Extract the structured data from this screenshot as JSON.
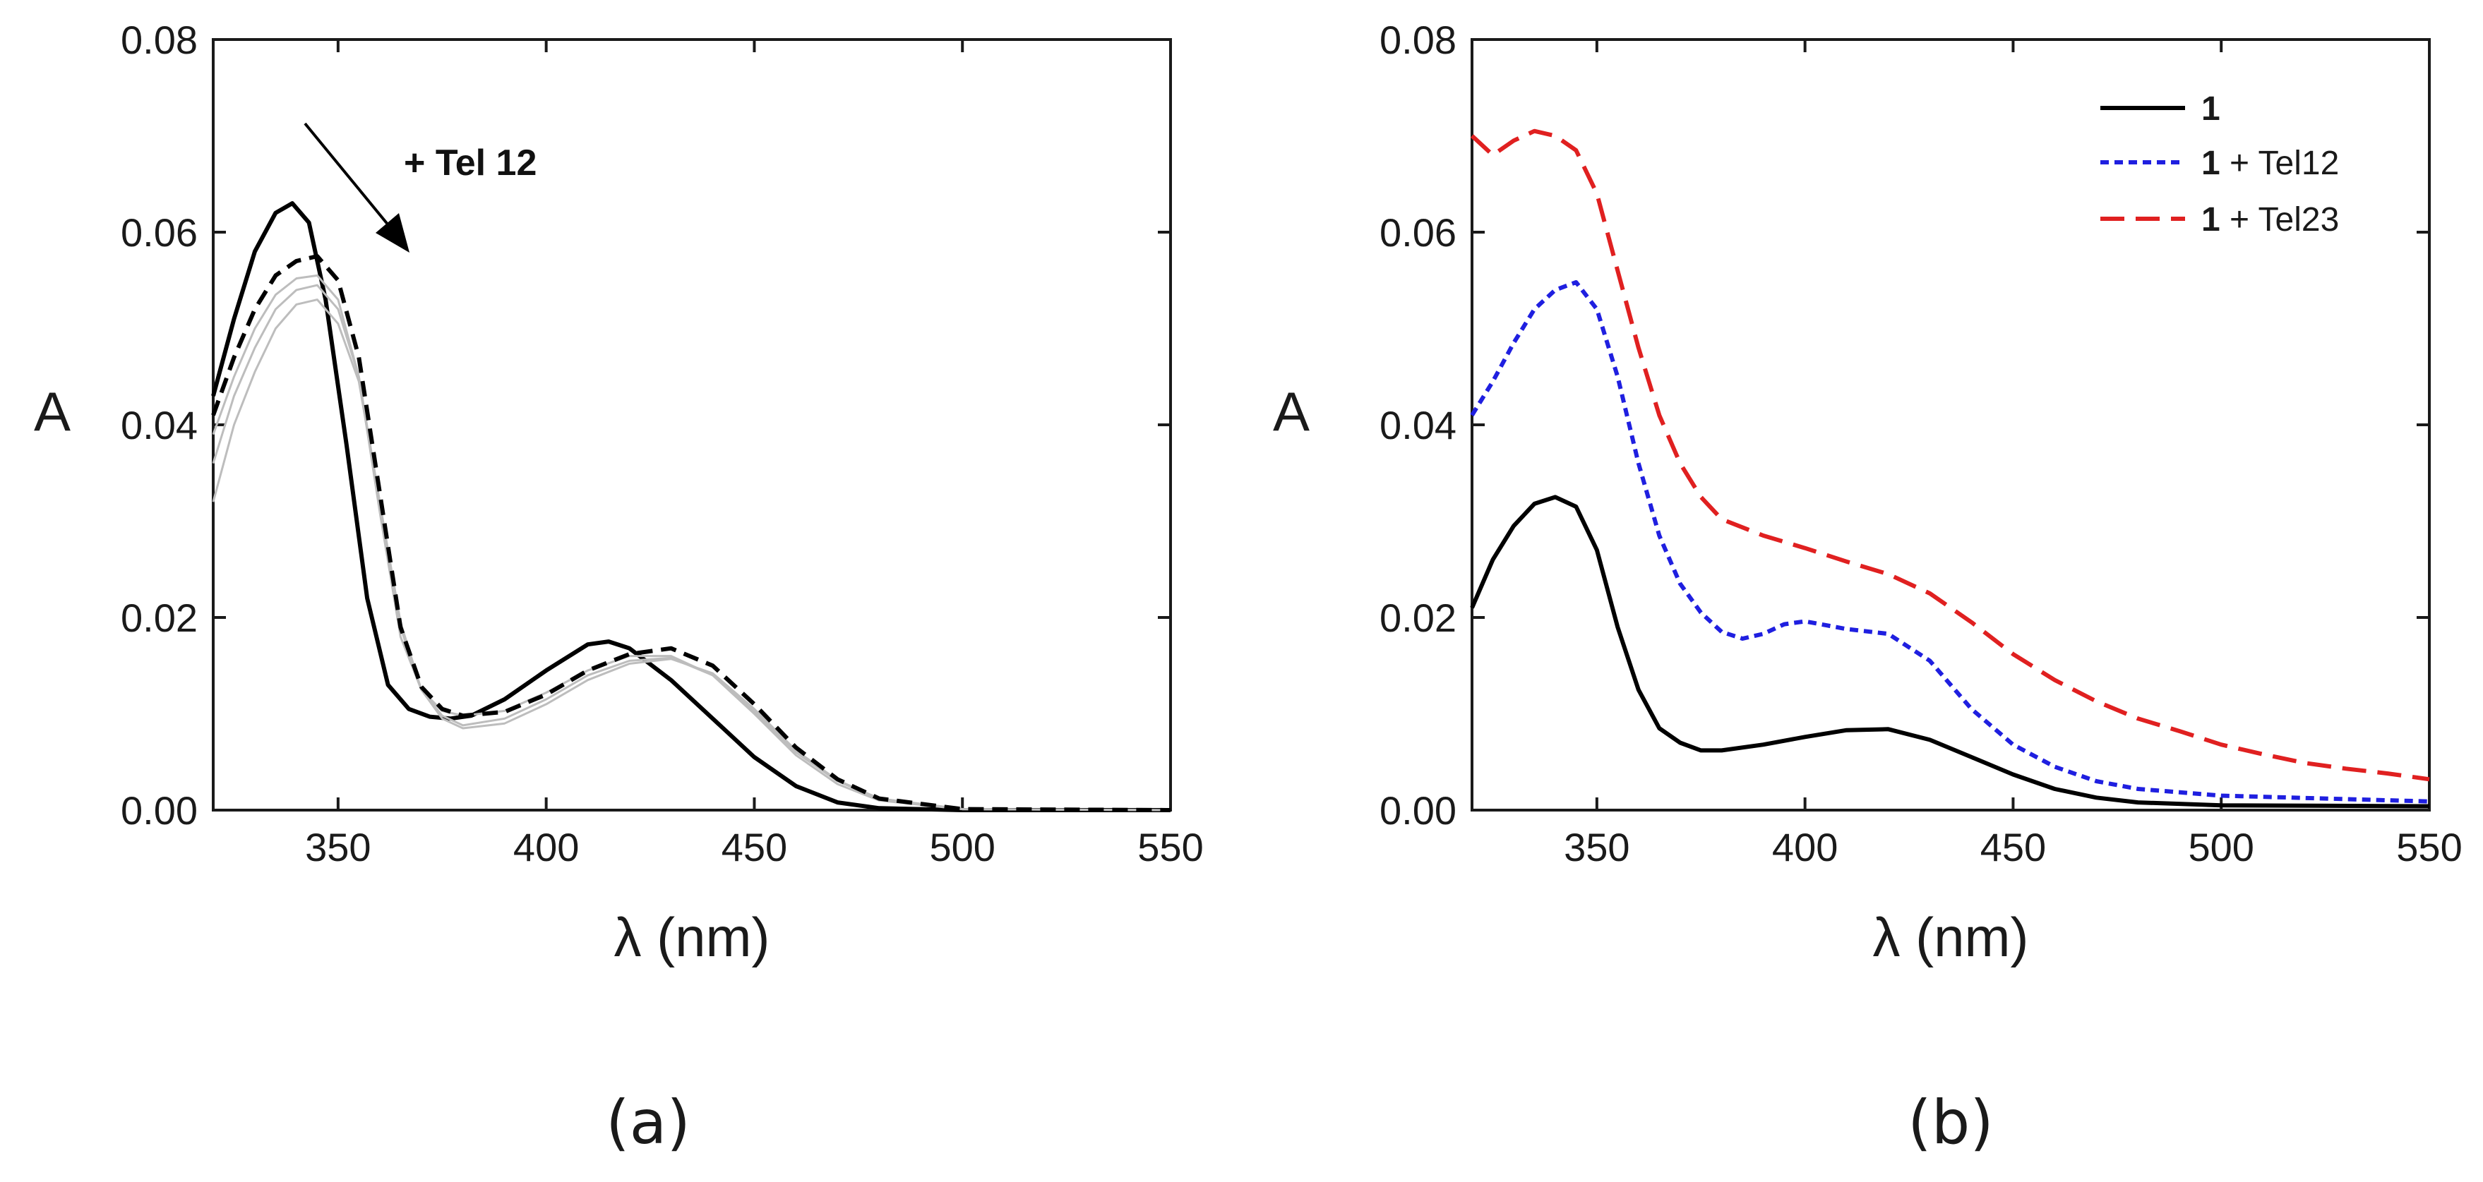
{
  "chart_data": [
    {
      "type": "line",
      "panel_label": "(a)",
      "xlabel": "λ (nm)",
      "ylabel": "A",
      "xlim": [
        320,
        550
      ],
      "ylim": [
        0,
        0.08
      ],
      "x_ticks": [
        "350",
        "400",
        "450",
        "500",
        "550"
      ],
      "y_ticks": [
        "0.00",
        "0.02",
        "0.04",
        "0.06",
        "0.08"
      ],
      "annotation": "+ Tel 12",
      "series": [
        {
          "style": "solid",
          "color": "#000000",
          "points": [
            [
              320,
              0.043
            ],
            [
              325,
              0.051
            ],
            [
              330,
              0.058
            ],
            [
              335,
              0.062
            ],
            [
              339,
              0.063
            ],
            [
              343,
              0.061
            ],
            [
              347,
              0.053
            ],
            [
              352,
              0.038
            ],
            [
              357,
              0.022
            ],
            [
              362,
              0.013
            ],
            [
              367,
              0.0105
            ],
            [
              372,
              0.0097
            ],
            [
              377,
              0.0095
            ],
            [
              382,
              0.0098
            ],
            [
              390,
              0.0115
            ],
            [
              400,
              0.0145
            ],
            [
              410,
              0.0172
            ],
            [
              415,
              0.0175
            ],
            [
              420,
              0.0168
            ],
            [
              430,
              0.0135
            ],
            [
              440,
              0.0095
            ],
            [
              450,
              0.0055
            ],
            [
              460,
              0.0025
            ],
            [
              470,
              0.0008
            ],
            [
              480,
              0.0002
            ],
            [
              500,
              0.0
            ],
            [
              550,
              0.0
            ]
          ]
        },
        {
          "style": "solid",
          "color": "#bdbdbd",
          "points": [
            [
              320,
              0.039
            ],
            [
              325,
              0.045
            ],
            [
              330,
              0.05
            ],
            [
              335,
              0.0535
            ],
            [
              340,
              0.0552
            ],
            [
              345,
              0.0555
            ],
            [
              350,
              0.053
            ],
            [
              355,
              0.045
            ],
            [
              360,
              0.031
            ],
            [
              365,
              0.018
            ],
            [
              370,
              0.0125
            ],
            [
              375,
              0.0103
            ],
            [
              380,
              0.0098
            ],
            [
              390,
              0.0103
            ],
            [
              400,
              0.0122
            ],
            [
              410,
              0.0145
            ],
            [
              420,
              0.016
            ],
            [
              430,
              0.016
            ],
            [
              440,
              0.014
            ],
            [
              450,
              0.01
            ],
            [
              460,
              0.0057
            ],
            [
              470,
              0.0027
            ],
            [
              480,
              0.001
            ],
            [
              500,
              0.0001
            ],
            [
              550,
              0.0
            ]
          ]
        },
        {
          "style": "solid",
          "color": "#bdbdbd",
          "points": [
            [
              320,
              0.036
            ],
            [
              325,
              0.043
            ],
            [
              330,
              0.048
            ],
            [
              335,
              0.052
            ],
            [
              340,
              0.054
            ],
            [
              345,
              0.0545
            ],
            [
              350,
              0.052
            ],
            [
              355,
              0.045
            ],
            [
              360,
              0.032
            ],
            [
              365,
              0.019
            ],
            [
              370,
              0.0125
            ],
            [
              375,
              0.0098
            ],
            [
              380,
              0.0088
            ],
            [
              390,
              0.0095
            ],
            [
              400,
              0.0115
            ],
            [
              410,
              0.014
            ],
            [
              420,
              0.0155
            ],
            [
              430,
              0.0158
            ],
            [
              440,
              0.014
            ],
            [
              450,
              0.0102
            ],
            [
              460,
              0.006
            ],
            [
              470,
              0.003
            ],
            [
              480,
              0.0012
            ],
            [
              500,
              0.0001
            ],
            [
              550,
              0.0
            ]
          ]
        },
        {
          "style": "solid",
          "color": "#bdbdbd",
          "points": [
            [
              320,
              0.032
            ],
            [
              325,
              0.04
            ],
            [
              330,
              0.0455
            ],
            [
              335,
              0.05
            ],
            [
              340,
              0.0525
            ],
            [
              345,
              0.053
            ],
            [
              350,
              0.0505
            ],
            [
              355,
              0.0445
            ],
            [
              360,
              0.032
            ],
            [
              365,
              0.0195
            ],
            [
              370,
              0.0125
            ],
            [
              375,
              0.0095
            ],
            [
              380,
              0.0085
            ],
            [
              390,
              0.009
            ],
            [
              400,
              0.011
            ],
            [
              410,
              0.0135
            ],
            [
              420,
              0.0152
            ],
            [
              430,
              0.0157
            ],
            [
              440,
              0.0142
            ],
            [
              450,
              0.0105
            ],
            [
              460,
              0.0062
            ],
            [
              470,
              0.0031
            ],
            [
              480,
              0.0012
            ],
            [
              500,
              0.0001
            ],
            [
              550,
              0.0
            ]
          ]
        },
        {
          "style": "dashed",
          "color": "#000000",
          "points": [
            [
              320,
              0.041
            ],
            [
              325,
              0.047
            ],
            [
              330,
              0.052
            ],
            [
              335,
              0.0555
            ],
            [
              340,
              0.057
            ],
            [
              345,
              0.0575
            ],
            [
              350,
              0.055
            ],
            [
              355,
              0.047
            ],
            [
              360,
              0.033
            ],
            [
              365,
              0.019
            ],
            [
              370,
              0.0128
            ],
            [
              375,
              0.0105
            ],
            [
              380,
              0.0098
            ],
            [
              390,
              0.0102
            ],
            [
              400,
              0.012
            ],
            [
              410,
              0.0145
            ],
            [
              420,
              0.0162
            ],
            [
              430,
              0.0168
            ],
            [
              440,
              0.015
            ],
            [
              450,
              0.011
            ],
            [
              460,
              0.0065
            ],
            [
              470,
              0.0032
            ],
            [
              480,
              0.0012
            ],
            [
              500,
              0.0001
            ],
            [
              550,
              0.0
            ]
          ]
        }
      ]
    },
    {
      "type": "line",
      "panel_label": "(b)",
      "xlabel": "λ (nm)",
      "ylabel": "A",
      "xlim": [
        320,
        550
      ],
      "ylim": [
        0,
        0.08
      ],
      "x_ticks": [
        "350",
        "400",
        "450",
        "500",
        "550"
      ],
      "y_ticks": [
        "0.00",
        "0.02",
        "0.04",
        "0.06",
        "0.08"
      ],
      "legend_position": "top-right",
      "series": [
        {
          "name_bold": "1",
          "name_rest": "",
          "style": "solid",
          "color": "#000000",
          "points": [
            [
              320,
              0.021
            ],
            [
              325,
              0.026
            ],
            [
              330,
              0.0295
            ],
            [
              335,
              0.0318
            ],
            [
              340,
              0.0325
            ],
            [
              345,
              0.0315
            ],
            [
              350,
              0.027
            ],
            [
              355,
              0.019
            ],
            [
              360,
              0.0125
            ],
            [
              365,
              0.0085
            ],
            [
              370,
              0.007
            ],
            [
              375,
              0.0062
            ],
            [
              380,
              0.0062
            ],
            [
              390,
              0.0068
            ],
            [
              400,
              0.0076
            ],
            [
              410,
              0.0083
            ],
            [
              420,
              0.0084
            ],
            [
              430,
              0.0073
            ],
            [
              440,
              0.0055
            ],
            [
              450,
              0.0037
            ],
            [
              460,
              0.0022
            ],
            [
              470,
              0.0013
            ],
            [
              480,
              0.0008
            ],
            [
              500,
              0.0005
            ],
            [
              550,
              0.0004
            ]
          ]
        },
        {
          "name_bold": "1",
          "name_rest": " + Tel12",
          "style": "dotted",
          "color": "#1f1fe0",
          "points": [
            [
              320,
              0.041
            ],
            [
              325,
              0.0445
            ],
            [
              330,
              0.0485
            ],
            [
              335,
              0.052
            ],
            [
              340,
              0.054
            ],
            [
              345,
              0.0548
            ],
            [
              350,
              0.052
            ],
            [
              355,
              0.045
            ],
            [
              360,
              0.036
            ],
            [
              365,
              0.0285
            ],
            [
              370,
              0.0235
            ],
            [
              375,
              0.0205
            ],
            [
              380,
              0.0185
            ],
            [
              385,
              0.0178
            ],
            [
              390,
              0.0183
            ],
            [
              395,
              0.0193
            ],
            [
              400,
              0.0196
            ],
            [
              410,
              0.0188
            ],
            [
              420,
              0.0183
            ],
            [
              430,
              0.0155
            ],
            [
              440,
              0.0105
            ],
            [
              450,
              0.0068
            ],
            [
              460,
              0.0045
            ],
            [
              470,
              0.003
            ],
            [
              480,
              0.0022
            ],
            [
              500,
              0.0015
            ],
            [
              550,
              0.0009
            ]
          ]
        },
        {
          "name_bold": "1",
          "name_rest": " + Tel23",
          "style": "dashed",
          "color": "#e02020",
          "points": [
            [
              320,
              0.07
            ],
            [
              325,
              0.068
            ],
            [
              330,
              0.0695
            ],
            [
              335,
              0.0705
            ],
            [
              340,
              0.07
            ],
            [
              345,
              0.0685
            ],
            [
              350,
              0.064
            ],
            [
              355,
              0.056
            ],
            [
              360,
              0.048
            ],
            [
              365,
              0.041
            ],
            [
              370,
              0.036
            ],
            [
              375,
              0.0325
            ],
            [
              380,
              0.0302
            ],
            [
              390,
              0.0285
            ],
            [
              400,
              0.0272
            ],
            [
              410,
              0.0258
            ],
            [
              420,
              0.0245
            ],
            [
              430,
              0.0225
            ],
            [
              440,
              0.0195
            ],
            [
              450,
              0.0162
            ],
            [
              460,
              0.0135
            ],
            [
              470,
              0.0113
            ],
            [
              480,
              0.0095
            ],
            [
              490,
              0.0082
            ],
            [
              500,
              0.0068
            ],
            [
              510,
              0.0058
            ],
            [
              520,
              0.0049
            ],
            [
              530,
              0.0043
            ],
            [
              540,
              0.0038
            ],
            [
              550,
              0.0032
            ]
          ]
        }
      ]
    }
  ]
}
